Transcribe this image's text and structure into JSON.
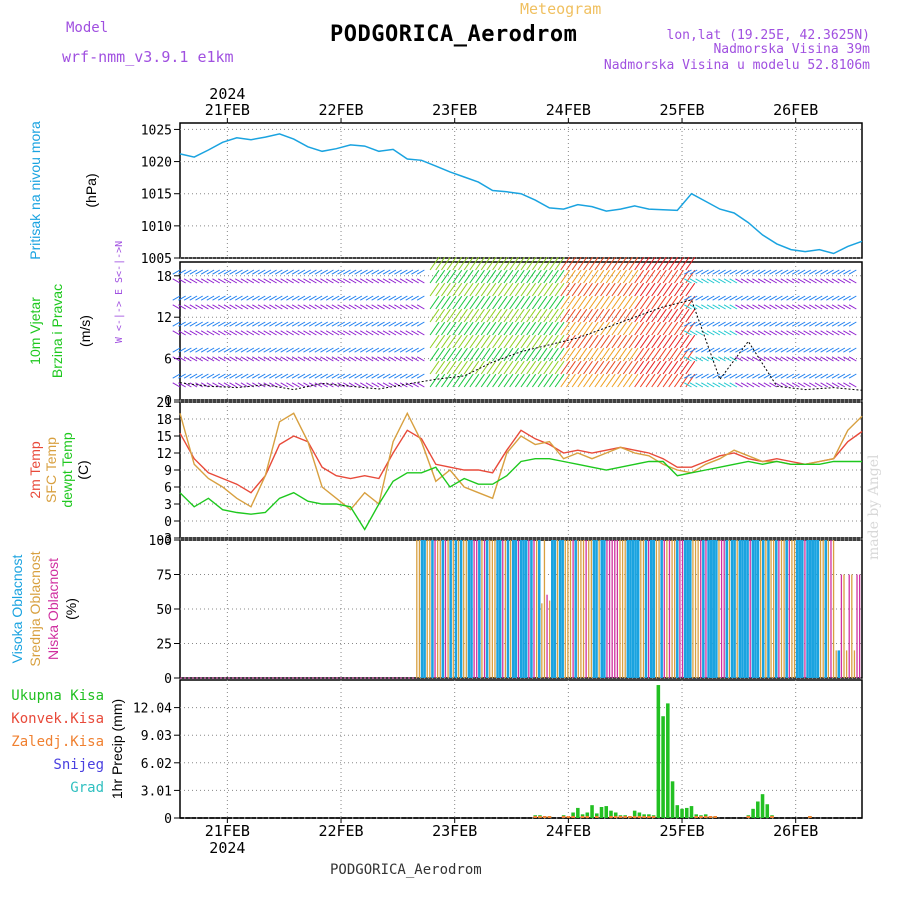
{
  "header": {
    "title": "PODGORICA_Aerodrom",
    "subtitle": "Meteogram",
    "model_label": "Model",
    "model_name": "wrf-nmm_v3.9.1 e1km",
    "lonlat": "lon,lat (19.25E, 42.3625N)",
    "altitude": "Nadmorska Visina 39m",
    "model_altitude": "Nadmorska Visina u modelu 52.8106m",
    "credit": "made by Angel",
    "footer": "PODGORICA_Aerodrom"
  },
  "colors": {
    "pressure": "#1aa3e0",
    "temp2m": "#e84a3a",
    "sfc": "#d8a040",
    "dewpt": "#1ec81e",
    "cloud_high": "#1aa3e0",
    "cloud_mid": "#d8a040",
    "cloud_low": "#d030a0",
    "precip_total": "#22c022",
    "precip_conv": "#e84a3a",
    "precip_frz": "#f08030",
    "snow": "#4a40e0",
    "graupel": "#30c0c0"
  },
  "chart_data": [
    {
      "id": "pressure",
      "type": "line",
      "xlabel": "",
      "ylabel_lines": [
        "Pritisak na nivou mora",
        "(hPa)"
      ],
      "ylim": [
        1005,
        1026
      ],
      "yticks": [
        "1005",
        "1010",
        "1015",
        "1020",
        "1025"
      ],
      "x_top_year": "2024",
      "x_categories": [
        "21FEB",
        "22FEB",
        "23FEB",
        "24FEB",
        "25FEB",
        "26FEB"
      ],
      "x": [
        0,
        3,
        6,
        9,
        12,
        15,
        18,
        21,
        24,
        27,
        30,
        33,
        36,
        39,
        42,
        45,
        48,
        51,
        54,
        57,
        60,
        63,
        66,
        69,
        72,
        75,
        78,
        81,
        84,
        87,
        90,
        93,
        96,
        99,
        102,
        105,
        108,
        111,
        114,
        117,
        120,
        123,
        126,
        129,
        132,
        135,
        138,
        141,
        144
      ],
      "values": [
        1021.2,
        1020.7,
        1021.8,
        1023.0,
        1023.7,
        1023.4,
        1023.8,
        1024.3,
        1023.5,
        1022.3,
        1021.6,
        1022.0,
        1022.6,
        1022.4,
        1021.6,
        1021.9,
        1020.4,
        1020.2,
        1019.3,
        1018.4,
        1017.6,
        1016.8,
        1015.5,
        1015.3,
        1015.0,
        1014.0,
        1012.8,
        1012.6,
        1013.3,
        1013.0,
        1012.3,
        1012.6,
        1013.1,
        1012.6,
        1012.5,
        1012.4,
        1015.0,
        1013.8,
        1012.6,
        1012.0,
        1010.5,
        1008.6,
        1007.2,
        1006.3,
        1006.0,
        1006.3,
        1005.7,
        1006.8,
        1007.6
      ]
    },
    {
      "id": "wind",
      "type": "line",
      "ylabel_lines": [
        "10m Vjetar",
        "Brzina i Pravac",
        "(m/s)"
      ],
      "compass_label": "W <-|-> E  S<-|->N",
      "ylim": [
        0,
        20
      ],
      "yticks": [
        "0",
        "6",
        "12",
        "18"
      ],
      "x": [
        0,
        6,
        12,
        18,
        24,
        30,
        36,
        42,
        48,
        54,
        60,
        66,
        72,
        78,
        84,
        90,
        96,
        102,
        108,
        114,
        120,
        126,
        132,
        138,
        144
      ],
      "speed": [
        2.5,
        2.0,
        1.8,
        2.2,
        1.5,
        2.4,
        2.0,
        1.6,
        2.3,
        3.0,
        3.5,
        5.5,
        7.0,
        8.0,
        9.0,
        10.5,
        12.0,
        13.5,
        14.5,
        3.0,
        8.5,
        2.0,
        1.5,
        1.8,
        1.4
      ],
      "series": [
        {
          "name": "",
          "color": "#000000"
        }
      ],
      "note": ""
    },
    {
      "id": "temperature",
      "type": "line",
      "ylabel_lines": [
        "2m Temp",
        "SFC Temp",
        "dewpt Temp",
        "(C)"
      ],
      "ylim": [
        -3,
        21
      ],
      "yticks": [
        "-3",
        "0",
        "3",
        "6",
        "9",
        "12",
        "15",
        "18",
        "21"
      ],
      "x": [
        0,
        3,
        6,
        9,
        12,
        15,
        18,
        21,
        24,
        27,
        30,
        33,
        36,
        39,
        42,
        45,
        48,
        51,
        54,
        57,
        60,
        63,
        66,
        69,
        72,
        75,
        78,
        81,
        84,
        87,
        90,
        93,
        96,
        99,
        102,
        105,
        108,
        111,
        114,
        117,
        120,
        123,
        126,
        129,
        132,
        135,
        138,
        141,
        144
      ],
      "series": [
        {
          "name": "2m Temp",
          "values": [
            15.5,
            11.0,
            8.5,
            7.5,
            6.5,
            5.0,
            8.0,
            13.5,
            15.0,
            14.0,
            9.5,
            8.0,
            7.5,
            8.0,
            7.5,
            12.0,
            16.0,
            14.5,
            10.0,
            9.5,
            9.0,
            9.0,
            8.5,
            12.5,
            16.0,
            14.5,
            13.5,
            12.0,
            12.5,
            12.0,
            12.5,
            13.0,
            12.5,
            12.0,
            11.0,
            9.5,
            9.5,
            10.5,
            11.5,
            12.0,
            11.0,
            10.5,
            11.0,
            10.5,
            10.0,
            10.5,
            11.0,
            14.0,
            15.8
          ]
        },
        {
          "name": "SFC Temp",
          "values": [
            19.0,
            10.0,
            7.5,
            6.0,
            4.0,
            2.5,
            8.0,
            17.5,
            19.0,
            14.0,
            6.0,
            4.0,
            2.0,
            5.0,
            3.0,
            14.0,
            19.0,
            14.0,
            7.0,
            9.0,
            6.0,
            5.0,
            4.0,
            12.0,
            15.0,
            13.5,
            14.0,
            11.0,
            12.0,
            11.0,
            12.0,
            13.0,
            12.0,
            11.5,
            10.0,
            9.0,
            8.5,
            10.0,
            11.0,
            12.5,
            11.5,
            10.5,
            10.5,
            10.0,
            10.0,
            10.5,
            11.0,
            16.0,
            18.5
          ]
        },
        {
          "name": "dewpt Temp",
          "values": [
            5.0,
            2.5,
            4.0,
            2.0,
            1.5,
            1.2,
            1.5,
            4.0,
            5.0,
            3.5,
            3.0,
            3.0,
            2.5,
            -1.5,
            3.0,
            7.0,
            8.5,
            8.5,
            9.5,
            6.0,
            7.5,
            6.5,
            6.5,
            8.0,
            10.5,
            11.0,
            11.0,
            10.5,
            10.0,
            9.5,
            9.0,
            9.5,
            10.0,
            10.5,
            10.5,
            8.0,
            8.5,
            9.0,
            9.5,
            10.0,
            10.5,
            10.0,
            10.5,
            10.0,
            10.0,
            10.0,
            10.5,
            10.5,
            10.5
          ]
        }
      ]
    },
    {
      "id": "cloud",
      "type": "bar",
      "ylabel_lines": [
        "Visoka Oblacnost",
        "Srednja Oblacnost",
        "Niska Oblacnost",
        "(%)"
      ],
      "ylim": [
        0,
        100
      ],
      "yticks": [
        "0",
        "25",
        "50",
        "75",
        "100"
      ],
      "x_start": 50,
      "x_end": 144,
      "note": ""
    },
    {
      "id": "precip",
      "type": "bar",
      "ylabel_lines": [
        "Ukupna Kisa",
        "Konvek.Kisa",
        "Zaledj.Kisa",
        "Snijeg",
        "Grad",
        "1hr Precip (mm)"
      ],
      "legend": [
        "Ukupna Kisa",
        "Konvek.Kisa",
        "Zaledj.Kisa",
        "Snijeg",
        "Grad"
      ],
      "ylabel": "1hr Precip (mm)",
      "ylim": [
        0,
        15.05
      ],
      "yticks": [
        "0",
        "3.01",
        "6.02",
        "9.03",
        "12.04"
      ],
      "x_bottom_year": "2024",
      "x_categories": [
        "21FEB",
        "22FEB",
        "23FEB",
        "24FEB",
        "25FEB",
        "26FEB"
      ],
      "x": [
        75,
        76,
        77,
        78,
        81,
        82,
        83,
        84,
        85,
        86,
        87,
        88,
        89,
        90,
        91,
        92,
        93,
        94,
        95,
        96,
        97,
        98,
        99,
        100,
        101,
        102,
        103,
        104,
        105,
        106,
        107,
        108,
        109,
        110,
        111,
        112,
        113,
        120,
        121,
        122,
        123,
        124,
        125,
        133
      ],
      "values": [
        0.3,
        0.3,
        0.2,
        0.2,
        0.3,
        0.2,
        0.6,
        1.1,
        0.4,
        0.6,
        1.4,
        0.5,
        1.2,
        1.3,
        0.8,
        0.6,
        0.3,
        0.3,
        0.2,
        0.8,
        0.6,
        0.4,
        0.4,
        0.3,
        14.5,
        11.1,
        12.5,
        4.0,
        1.4,
        1.0,
        1.1,
        1.3,
        0.4,
        0.3,
        0.4,
        0.2,
        0.2,
        0.3,
        1.0,
        1.8,
        2.6,
        1.5,
        0.3,
        0.2
      ]
    }
  ]
}
